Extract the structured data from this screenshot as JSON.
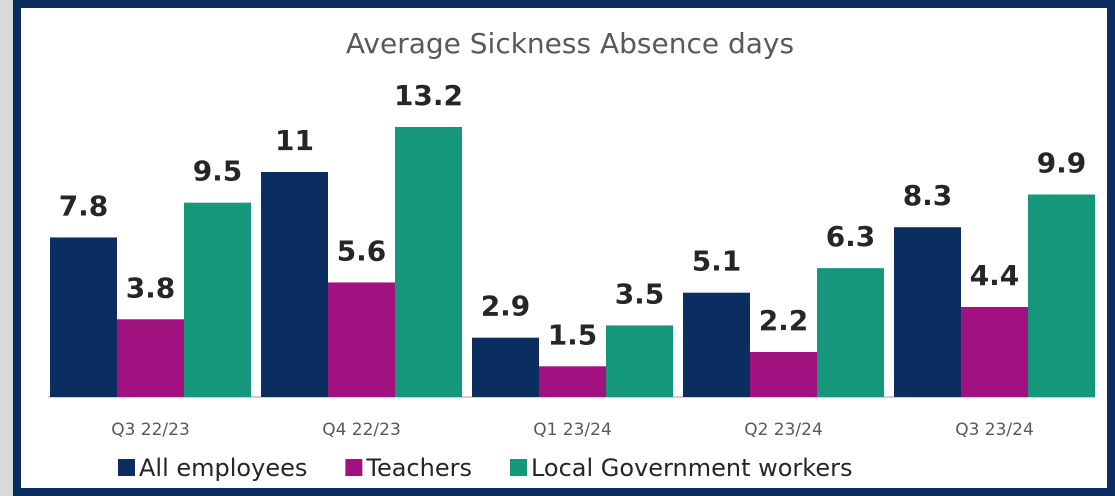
{
  "chart_data": {
    "type": "bar",
    "title": "Average Sickness Absence days",
    "categories": [
      "Q3 22/23",
      "Q4 22/23",
      "Q1 23/24",
      "Q2 23/24",
      "Q3 23/24"
    ],
    "series": [
      {
        "name": "All employees",
        "color": "#0b2d5f",
        "values": [
          7.8,
          11,
          2.9,
          5.1,
          8.3
        ]
      },
      {
        "name": "Teachers",
        "color": "#a1117f",
        "values": [
          3.8,
          5.6,
          1.5,
          2.2,
          4.4
        ]
      },
      {
        "name": "Local Government workers",
        "color": "#15977c",
        "values": [
          9.5,
          13.2,
          3.5,
          6.3,
          9.9
        ]
      }
    ],
    "legend": "bottom"
  }
}
